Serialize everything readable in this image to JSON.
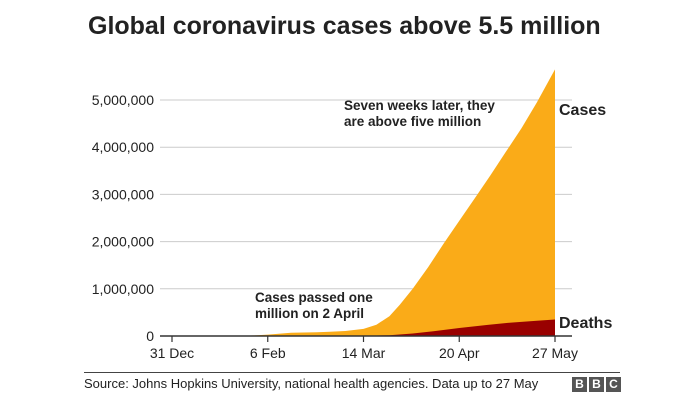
{
  "title": "Global coronavirus cases above 5.5 million",
  "source": "Source: Johns Hopkins University, national health agencies. Data up to 27 May",
  "logo": [
    "B",
    "B",
    "C"
  ],
  "colors": {
    "cases": "#FAAB18",
    "deaths": "#990000",
    "grid": "#cbcbcb",
    "axis": "#333333"
  },
  "chart_data": {
    "type": "area",
    "xlim": [
      "2019-12-31",
      "2020-05-27"
    ],
    "ylim": [
      0,
      5700000
    ],
    "yticks": [
      0,
      1000000,
      2000000,
      3000000,
      4000000,
      5000000
    ],
    "ytick_labels": [
      "0",
      "1,000,000",
      "2,000,000",
      "3,000,000",
      "4,000,000",
      "5,000,000"
    ],
    "xticks": [
      "2019-12-31",
      "2020-02-06",
      "2020-03-14",
      "2020-04-20",
      "2020-05-27"
    ],
    "xtick_labels": [
      "31 Dec",
      "6 Feb",
      "14 Mar",
      "20 Apr",
      "27 May"
    ],
    "grid": "horizontal",
    "series": [
      {
        "name": "Cases",
        "x": [
          "2019-12-31",
          "2020-01-15",
          "2020-01-25",
          "2020-02-01",
          "2020-02-06",
          "2020-02-15",
          "2020-02-25",
          "2020-03-01",
          "2020-03-07",
          "2020-03-14",
          "2020-03-19",
          "2020-03-24",
          "2020-03-28",
          "2020-04-02",
          "2020-04-08",
          "2020-04-14",
          "2020-04-20",
          "2020-04-26",
          "2020-05-02",
          "2020-05-08",
          "2020-05-14",
          "2020-05-20",
          "2020-05-27"
        ],
        "values": [
          0,
          100,
          2000,
          12000,
          30000,
          70000,
          80000,
          88000,
          106000,
          150000,
          240000,
          420000,
          660000,
          1000000,
          1460000,
          1960000,
          2440000,
          2920000,
          3400000,
          3900000,
          4400000,
          4950000,
          5650000
        ]
      },
      {
        "name": "Deaths",
        "x": [
          "2019-12-31",
          "2020-02-06",
          "2020-03-01",
          "2020-03-14",
          "2020-03-24",
          "2020-04-02",
          "2020-04-10",
          "2020-04-20",
          "2020-05-01",
          "2020-05-10",
          "2020-05-20",
          "2020-05-27"
        ],
        "values": [
          0,
          600,
          3000,
          6000,
          18000,
          52000,
          100000,
          170000,
          235000,
          285000,
          325000,
          350000
        ]
      }
    ],
    "annotations": [
      {
        "lines": [
          "Seven weeks later, they",
          "are above five million"
        ]
      },
      {
        "lines": [
          "Cases passed one",
          "million on 2 April"
        ]
      }
    ]
  }
}
